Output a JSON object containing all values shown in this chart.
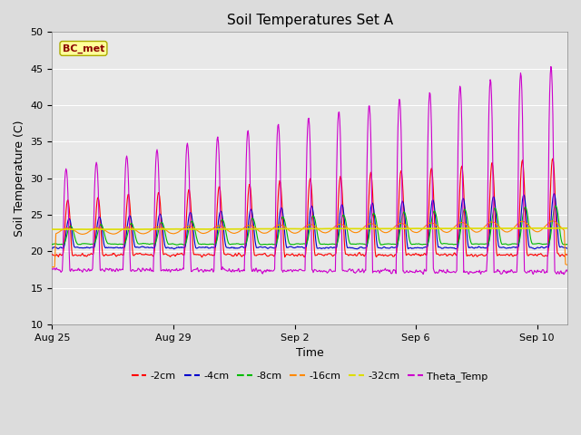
{
  "title": "Soil Temperatures Set A",
  "xlabel": "Time",
  "ylabel": "Soil Temperature (C)",
  "ylim": [
    10,
    50
  ],
  "yticks": [
    10,
    15,
    20,
    25,
    30,
    35,
    40,
    45,
    50
  ],
  "annotation_text": "BC_met",
  "bg_color": "#dcdcdc",
  "plot_bg": "#e8e8e8",
  "series_colors": {
    "-2cm": "#ff0000",
    "-4cm": "#0000cc",
    "-8cm": "#00bb00",
    "-16cm": "#ff8800",
    "-32cm": "#dddd00",
    "Theta_Temp": "#cc00cc"
  },
  "legend_order": [
    "-2cm",
    "-4cm",
    "-8cm",
    "-16cm",
    "-32cm",
    "Theta_Temp"
  ],
  "date_ticks": [
    "Aug 25",
    "Aug 29",
    "Sep 2",
    "Sep 6",
    "Sep 10"
  ],
  "day_positions": [
    0,
    4,
    8,
    12,
    16
  ],
  "xlim": [
    0,
    17
  ],
  "n_days": 17,
  "figsize": [
    6.4,
    4.8
  ],
  "dpi": 100
}
